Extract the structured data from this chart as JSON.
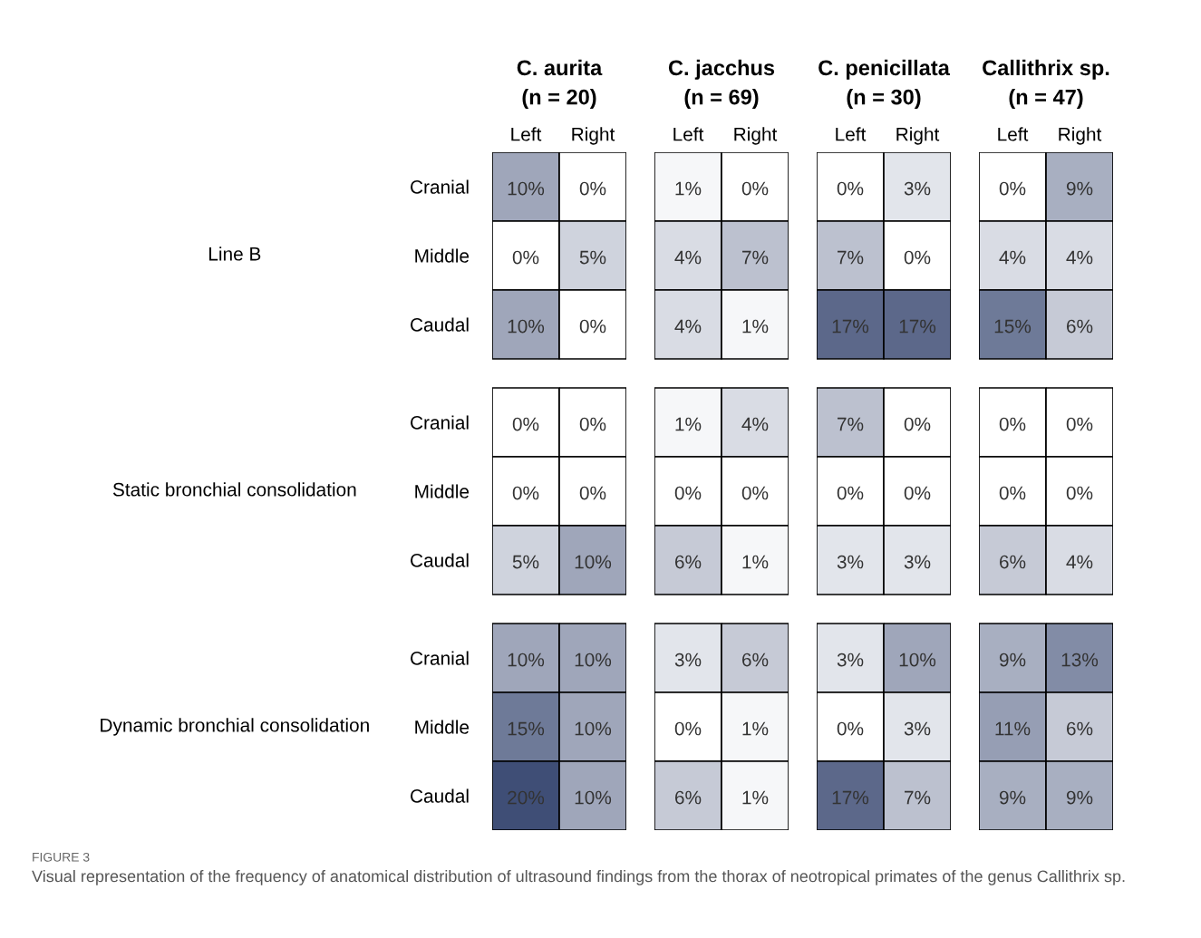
{
  "chart_data": [
    {
      "type": "heatmap",
      "title": "C. aurita\n(n = 20)",
      "categories": [
        "Left",
        "Right"
      ],
      "y_categories": [
        "Cranial",
        "Middle",
        "Caudal",
        "Cranial",
        "Middle",
        "Caudal",
        "Cranial",
        "Middle",
        "Caudal"
      ],
      "y2_categories": [
        null,
        "Line B",
        null,
        null,
        "Static bronchial consolidation",
        null,
        null,
        "Dynamic bronchial consolidation",
        null
      ],
      "cells": [
        [
          10,
          0
        ],
        [
          0,
          5
        ],
        [
          10,
          0
        ],
        [
          0,
          0
        ],
        [
          0,
          0
        ],
        [
          5,
          10
        ],
        [
          10,
          10
        ],
        [
          15,
          10
        ],
        [
          20,
          10
        ]
      ],
      "cell_labels": [
        [
          "10%",
          "0%"
        ],
        [
          "0%",
          "5%"
        ],
        [
          "10%",
          "0%"
        ],
        [
          "0%",
          "0%"
        ],
        [
          "0%",
          "0%"
        ],
        [
          "5%",
          "10%"
        ],
        [
          "10%",
          "10%"
        ],
        [
          "15%",
          "10%"
        ],
        [
          "20%",
          "10%"
        ]
      ],
      "annotations": [
        "FIGURE 3",
        "Visual representation of the frequency of anatomical distribution of ultrasound findings from the thorax of neotropical primates of the genus Callithrix sp."
      ]
    },
    {
      "type": "heatmap",
      "title": "C. jacchus\n(n = 69)",
      "categories": [
        "Left",
        "Right"
      ],
      "y_categories": [
        null,
        null,
        null,
        null,
        null,
        null,
        null,
        null,
        null
      ],
      "cells": [
        [
          1,
          0
        ],
        [
          4,
          7
        ],
        [
          4,
          1
        ],
        [
          1,
          4
        ],
        [
          0,
          0
        ],
        [
          6,
          1
        ],
        [
          3,
          6
        ],
        [
          0,
          1
        ],
        [
          6,
          1
        ]
      ],
      "cell_labels": [
        [
          "1%",
          "0%"
        ],
        [
          "4%",
          "7%"
        ],
        [
          "4%",
          "1%"
        ],
        [
          "1%",
          "4%"
        ],
        [
          "0%",
          "0%"
        ],
        [
          "6%",
          "1%"
        ],
        [
          "3%",
          "6%"
        ],
        [
          "0%",
          "1%"
        ],
        [
          "6%",
          "1%"
        ]
      ]
    },
    {
      "type": "heatmap",
      "title": "C. penicillata\n(n = 30)",
      "categories": [
        "Left",
        "Right"
      ],
      "y_categories": [
        null,
        null,
        null,
        null,
        null,
        null,
        null,
        null,
        null
      ],
      "cells": [
        [
          0,
          3
        ],
        [
          7,
          0
        ],
        [
          17,
          17
        ],
        [
          7,
          0
        ],
        [
          0,
          0
        ],
        [
          3,
          3
        ],
        [
          3,
          10
        ],
        [
          0,
          3
        ],
        [
          17,
          7
        ]
      ],
      "cell_labels": [
        [
          "0%",
          "3%"
        ],
        [
          "7%",
          "0%"
        ],
        [
          "17%",
          "17%"
        ],
        [
          "7%",
          "0%"
        ],
        [
          "0%",
          "0%"
        ],
        [
          "3%",
          "3%"
        ],
        [
          "3%",
          "10%"
        ],
        [
          "0%",
          "3%"
        ],
        [
          "17%",
          "7%"
        ]
      ]
    },
    {
      "type": "heatmap",
      "title": "Callithrix sp.\n(n = 47)",
      "categories": [
        "Left",
        "Right"
      ],
      "y_categories": [
        null,
        null,
        null,
        null,
        null,
        null,
        null,
        null,
        null
      ],
      "cells": [
        [
          0,
          9
        ],
        [
          4,
          4
        ],
        [
          15,
          6
        ],
        [
          0,
          0
        ],
        [
          0,
          0
        ],
        [
          6,
          4
        ],
        [
          9,
          13
        ],
        [
          11,
          6
        ],
        [
          9,
          9
        ]
      ],
      "cell_labels": [
        [
          "0%",
          "9%"
        ],
        [
          "4%",
          "4%"
        ],
        [
          "15%",
          "6%"
        ],
        [
          "0%",
          "0%"
        ],
        [
          "0%",
          "0%"
        ],
        [
          "6%",
          "4%"
        ],
        [
          "9%",
          "13%"
        ],
        [
          "11%",
          "6%"
        ],
        [
          "9%",
          "9%"
        ]
      ]
    }
  ]
}
